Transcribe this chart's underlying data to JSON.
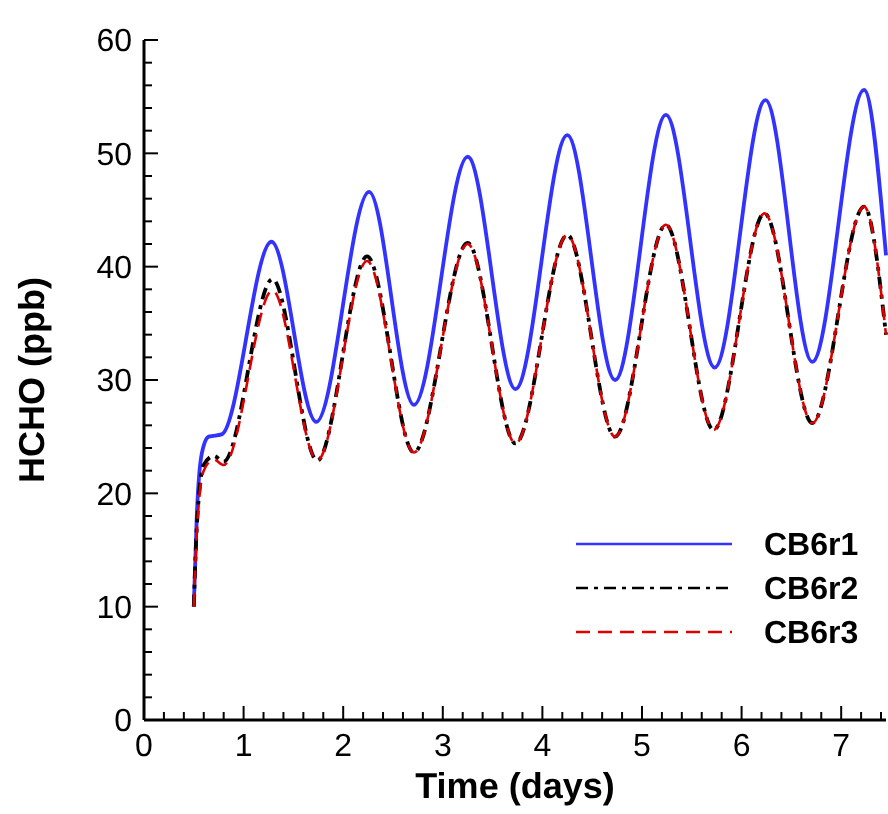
{
  "chart_data": {
    "type": "line",
    "xlabel": "Time (days)",
    "ylabel": "HCHO (ppb)",
    "xlim": [
      0,
      7.45
    ],
    "ylim": [
      0,
      60
    ],
    "xticks": [
      0,
      {
        "value": 0.2,
        "label": null
      },
      {
        "value": 0.4,
        "label": null
      },
      {
        "value": 0.6,
        "label": null
      },
      {
        "value": 0.8,
        "label": null
      },
      1,
      {
        "value": 1.2,
        "label": null
      },
      {
        "value": 1.4,
        "label": null
      },
      {
        "value": 1.6,
        "label": null
      },
      {
        "value": 1.8,
        "label": null
      },
      2,
      {
        "value": 2.2,
        "label": null
      },
      {
        "value": 2.4,
        "label": null
      },
      {
        "value": 2.6,
        "label": null
      },
      {
        "value": 2.8,
        "label": null
      },
      3,
      {
        "value": 3.2,
        "label": null
      },
      {
        "value": 3.4,
        "label": null
      },
      {
        "value": 3.6,
        "label": null
      },
      {
        "value": 3.8,
        "label": null
      },
      4,
      {
        "value": 4.2,
        "label": null
      },
      {
        "value": 4.4,
        "label": null
      },
      {
        "value": 4.6,
        "label": null
      },
      {
        "value": 4.8,
        "label": null
      },
      5,
      {
        "value": 5.2,
        "label": null
      },
      {
        "value": 5.4,
        "label": null
      },
      {
        "value": 5.6,
        "label": null
      },
      {
        "value": 5.8,
        "label": null
      },
      6,
      {
        "value": 6.2,
        "label": null
      },
      {
        "value": 6.4,
        "label": null
      },
      {
        "value": 6.6,
        "label": null
      },
      {
        "value": 6.8,
        "label": null
      },
      7,
      {
        "value": 7.2,
        "label": null
      },
      {
        "value": 7.4,
        "label": null
      }
    ],
    "yticks": [
      0,
      {
        "value": 2,
        "label": null
      },
      {
        "value": 4,
        "label": null
      },
      {
        "value": 6,
        "label": null
      },
      {
        "value": 8,
        "label": null
      },
      10,
      {
        "value": 12,
        "label": null
      },
      {
        "value": 14,
        "label": null
      },
      {
        "value": 16,
        "label": null
      },
      {
        "value": 18,
        "label": null
      },
      20,
      {
        "value": 22,
        "label": null
      },
      {
        "value": 24,
        "label": null
      },
      {
        "value": 26,
        "label": null
      },
      {
        "value": 28,
        "label": null
      },
      30,
      {
        "value": 32,
        "label": null
      },
      {
        "value": 34,
        "label": null
      },
      {
        "value": 36,
        "label": null
      },
      {
        "value": 38,
        "label": null
      },
      40,
      {
        "value": 42,
        "label": null
      },
      {
        "value": 44,
        "label": null
      },
      {
        "value": 46,
        "label": null
      },
      {
        "value": 48,
        "label": null
      },
      50,
      {
        "value": 52,
        "label": null
      },
      {
        "value": 54,
        "label": null
      },
      {
        "value": 56,
        "label": null
      },
      {
        "value": 58,
        "label": null
      },
      60
    ],
    "legend": "bottom right",
    "grid": false,
    "marker": "none",
    "series": [
      {
        "name": "CB6r1",
        "color": "#3333ff",
        "line_style": "solid",
        "x": [
          0.5,
          0.53,
          0.58,
          0.65,
          0.78,
          1.28,
          1.73,
          2.26,
          2.71,
          3.25,
          3.73,
          4.25,
          4.73,
          5.24,
          5.73,
          6.24,
          6.71,
          7.23,
          7.45
        ],
        "values": [
          10,
          18,
          23.5,
          25,
          25.2,
          42.2,
          26.3,
          46.6,
          27.8,
          49.7,
          29.2,
          51.6,
          30,
          53.4,
          31.1,
          54.7,
          31.6,
          55.6,
          41
        ]
      },
      {
        "name": "CB6r2",
        "color": "#000000",
        "line_style": "dashdot",
        "x": [
          0.5,
          0.53,
          0.6,
          0.7,
          0.8,
          1.29,
          1.74,
          2.24,
          2.71,
          3.25,
          3.73,
          4.25,
          4.73,
          5.24,
          5.72,
          6.23,
          6.71,
          7.23,
          7.45
        ],
        "values": [
          10,
          17,
          22.5,
          23.3,
          22.8,
          38.9,
          22.9,
          40.9,
          23.6,
          42.1,
          24.4,
          42.8,
          25,
          43.7,
          25.6,
          44.7,
          26.2,
          45.3,
          34
        ]
      },
      {
        "name": "CB6r3",
        "color": "#dd0000",
        "line_style": "dashed",
        "x": [
          0.5,
          0.53,
          0.6,
          0.7,
          0.8,
          1.29,
          1.74,
          2.24,
          2.71,
          3.25,
          3.73,
          4.25,
          4.73,
          5.24,
          5.72,
          6.23,
          6.71,
          7.23,
          7.45
        ],
        "values": [
          10,
          16.5,
          22,
          23,
          22.5,
          37.9,
          22.9,
          40.5,
          23.6,
          42,
          24.4,
          42.8,
          25,
          43.7,
          25.6,
          44.7,
          26.2,
          45.3,
          34
        ]
      }
    ]
  }
}
